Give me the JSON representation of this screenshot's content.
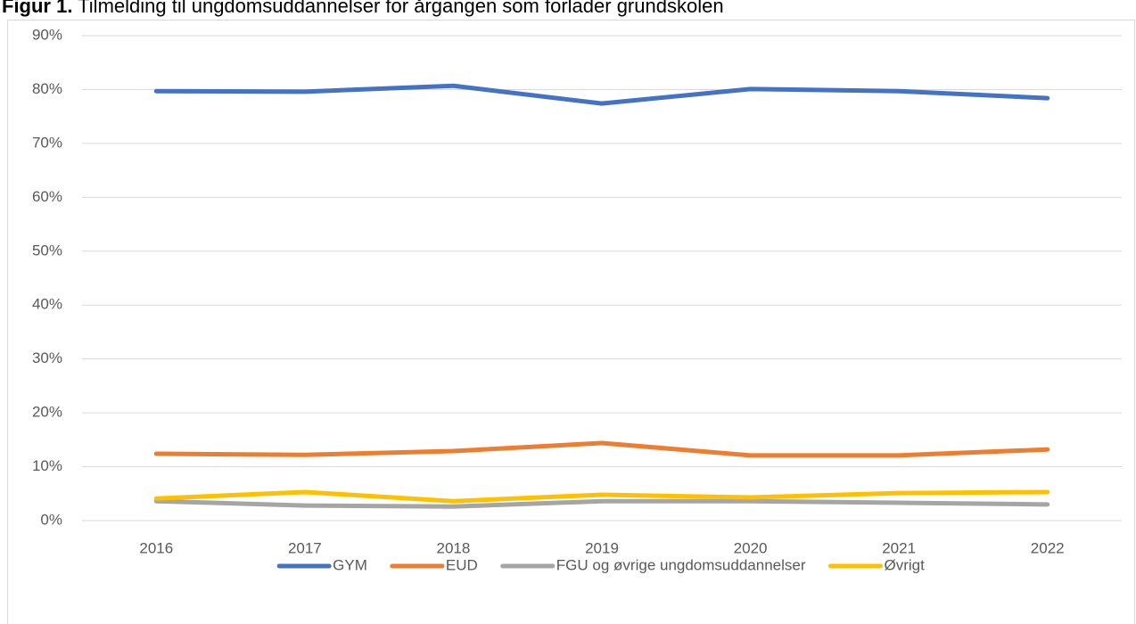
{
  "chart_data": {
    "type": "line",
    "figure_label": "Figur 1.",
    "title": "Tilmelding til ungdomsuddannelser for årgangen som forlader grundskolen",
    "categories": [
      "2016",
      "2017",
      "2018",
      "2019",
      "2020",
      "2021",
      "2022"
    ],
    "series": [
      {
        "name": "GYM",
        "color": "#4472c4",
        "values": [
          79.7,
          79.6,
          80.7,
          77.4,
          80.1,
          79.7,
          78.4
        ]
      },
      {
        "name": "EUD",
        "color": "#ed7d31",
        "values": [
          12.4,
          12.2,
          12.9,
          14.4,
          12.1,
          12.1,
          13.2
        ]
      },
      {
        "name": "FGU og øvrige ungdomsuddannelser",
        "color": "#a5a5a5",
        "values": [
          3.6,
          2.8,
          2.6,
          3.6,
          3.6,
          3.3,
          3.0
        ]
      },
      {
        "name": "Øvrigt",
        "color": "#ffc000",
        "values": [
          4.1,
          5.3,
          3.6,
          4.8,
          4.3,
          5.1,
          5.3
        ]
      }
    ],
    "ylim": [
      0,
      90
    ],
    "yticks": [
      {
        "value": 0,
        "label": "0%"
      },
      {
        "value": 10,
        "label": "10%"
      },
      {
        "value": 20,
        "label": "20%"
      },
      {
        "value": 30,
        "label": "30%"
      },
      {
        "value": 40,
        "label": "40%"
      },
      {
        "value": 50,
        "label": "50%"
      },
      {
        "value": 60,
        "label": "60%"
      },
      {
        "value": 70,
        "label": "70%"
      },
      {
        "value": 80,
        "label": "80%"
      },
      {
        "value": 90,
        "label": "90%"
      }
    ],
    "grid": true,
    "legend": "bottom"
  }
}
